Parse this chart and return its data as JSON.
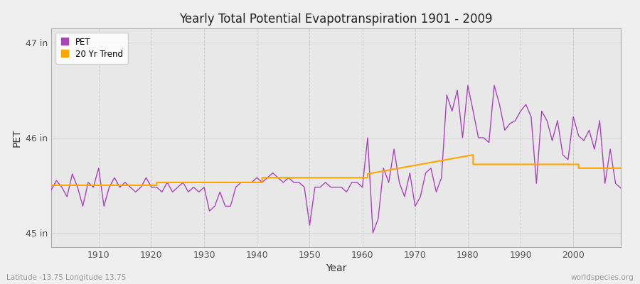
{
  "title": "Yearly Total Potential Evapotranspiration 1901 - 2009",
  "xlabel": "Year",
  "ylabel": "PET",
  "years": [
    1901,
    1902,
    1903,
    1904,
    1905,
    1906,
    1907,
    1908,
    1909,
    1910,
    1911,
    1912,
    1913,
    1914,
    1915,
    1916,
    1917,
    1918,
    1919,
    1920,
    1921,
    1922,
    1923,
    1924,
    1925,
    1926,
    1927,
    1928,
    1929,
    1930,
    1931,
    1932,
    1933,
    1934,
    1935,
    1936,
    1937,
    1938,
    1939,
    1940,
    1941,
    1942,
    1943,
    1944,
    1945,
    1946,
    1947,
    1948,
    1949,
    1950,
    1951,
    1952,
    1953,
    1954,
    1955,
    1956,
    1957,
    1958,
    1959,
    1960,
    1961,
    1962,
    1963,
    1964,
    1965,
    1966,
    1967,
    1968,
    1969,
    1970,
    1971,
    1972,
    1973,
    1974,
    1975,
    1976,
    1977,
    1978,
    1979,
    1980,
    1981,
    1982,
    1983,
    1984,
    1985,
    1986,
    1987,
    1988,
    1989,
    1990,
    1991,
    1992,
    1993,
    1994,
    1995,
    1996,
    1997,
    1998,
    1999,
    2000,
    2001,
    2002,
    2003,
    2004,
    2005,
    2006,
    2007,
    2008,
    2009
  ],
  "pet": [
    45.45,
    45.55,
    45.48,
    45.38,
    45.62,
    45.48,
    45.28,
    45.53,
    45.48,
    45.68,
    45.28,
    45.48,
    45.58,
    45.48,
    45.53,
    45.48,
    45.43,
    45.48,
    45.58,
    45.48,
    45.48,
    45.43,
    45.53,
    45.43,
    45.48,
    45.53,
    45.43,
    45.48,
    45.43,
    45.48,
    45.23,
    45.28,
    45.43,
    45.28,
    45.28,
    45.48,
    45.53,
    45.53,
    45.53,
    45.58,
    45.53,
    45.58,
    45.63,
    45.58,
    45.53,
    45.58,
    45.53,
    45.53,
    45.48,
    45.08,
    45.48,
    45.48,
    45.53,
    45.48,
    45.48,
    45.48,
    45.43,
    45.53,
    45.53,
    45.48,
    46.0,
    45.0,
    45.15,
    45.68,
    45.53,
    45.88,
    45.53,
    45.38,
    45.63,
    45.28,
    45.38,
    45.63,
    45.68,
    45.43,
    45.58,
    46.45,
    46.28,
    46.5,
    46.0,
    46.55,
    46.28,
    46.0,
    46.0,
    45.95,
    46.55,
    46.35,
    46.08,
    46.15,
    46.18,
    46.28,
    46.35,
    46.22,
    45.52,
    46.28,
    46.18,
    45.97,
    46.18,
    45.82,
    45.77,
    46.22,
    46.02,
    45.97,
    46.08,
    45.88,
    46.18,
    45.52,
    45.88,
    45.52,
    45.47
  ],
  "trend_years": [
    1901,
    1921,
    1921,
    1941,
    1941,
    1961,
    1961,
    1961,
    1981,
    1981,
    1981,
    2001,
    2001,
    2009
  ],
  "trend_vals": [
    45.5,
    45.5,
    45.53,
    45.53,
    45.58,
    45.58,
    45.62,
    45.62,
    45.82,
    45.82,
    45.72,
    45.72,
    45.68,
    45.68
  ],
  "pet_color": "#AA44BB",
  "trend_color": "#FFA500",
  "bg_color": "#EFEFEF",
  "plot_bg": "#E8E8E8",
  "ylim": [
    44.85,
    47.15
  ],
  "yticks": [
    45.0,
    46.0,
    47.0
  ],
  "ytick_labels": [
    "45 in",
    "46 in",
    "47 in"
  ],
  "xticks": [
    1910,
    1920,
    1930,
    1940,
    1950,
    1960,
    1970,
    1980,
    1990,
    2000
  ],
  "xlim": [
    1901,
    2009
  ],
  "footnote_left": "Latitude -13.75 Longitude 13.75",
  "footnote_right": "worldspecies.org",
  "legend_labels": [
    "PET",
    "20 Yr Trend"
  ]
}
